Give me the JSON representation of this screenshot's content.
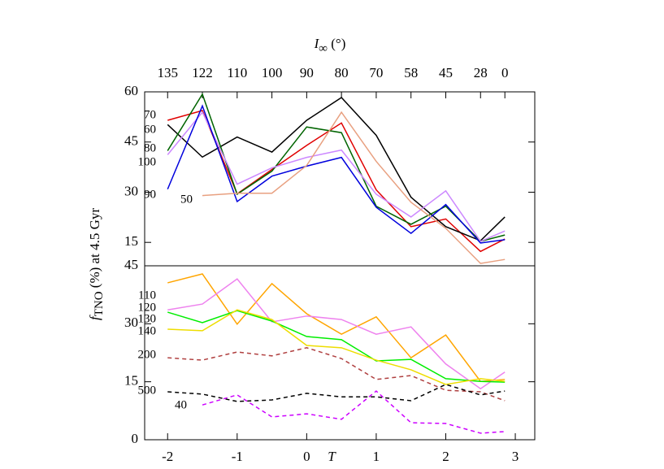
{
  "chart_data": [
    {
      "type": "line",
      "ylabel": [
        "f",
        "TNO",
        " (%) at 4.5 Gyr"
      ],
      "top_xlabel": [
        "I",
        "∞",
        " (°)"
      ],
      "x": [
        -2,
        -1.5,
        -1,
        -0.5,
        0,
        0.5,
        1,
        1.5,
        2,
        2.5,
        2.85
      ],
      "xlim": [
        -2.33,
        3.28
      ],
      "top_xticks": [
        {
          "value": -2,
          "label": "135"
        },
        {
          "value": -1.5,
          "label": "122"
        },
        {
          "value": -1,
          "label": "110"
        },
        {
          "value": -0.5,
          "label": "100"
        },
        {
          "value": 0,
          "label": "90"
        },
        {
          "value": 0.5,
          "label": "80"
        },
        {
          "value": 1,
          "label": "70"
        },
        {
          "value": 1.5,
          "label": "58"
        },
        {
          "value": 2,
          "label": "45"
        },
        {
          "value": 2.5,
          "label": "28"
        },
        {
          "value": 2.85,
          "label": "0"
        }
      ],
      "ylim": [
        8,
        60
      ],
      "yticks": [
        15,
        30,
        45,
        60
      ],
      "series": [
        {
          "name": "70",
          "color": "#e00000",
          "dash": false,
          "values": [
            51.5,
            54.4,
            29.5,
            36.8,
            44,
            50.7,
            30.7,
            19.7,
            22,
            12.3,
            16
          ]
        },
        {
          "name": "60",
          "color": "#000000",
          "dash": false,
          "values": [
            50.2,
            40.5,
            46.5,
            42,
            51.5,
            58.3,
            47,
            28.5,
            19.7,
            15.5,
            22.6
          ]
        },
        {
          "name": "80",
          "color": "#006400",
          "dash": false,
          "values": [
            42.4,
            59.3,
            29.4,
            36.3,
            49.5,
            47.8,
            25.8,
            20.4,
            25.8,
            15.3,
            17.2
          ]
        },
        {
          "name": "100",
          "color": "#cc88ff",
          "dash": false,
          "values": [
            41.2,
            53.9,
            32.4,
            37.3,
            40.4,
            42.6,
            29.4,
            22.6,
            30.4,
            15.3,
            18.4
          ]
        },
        {
          "name": "90",
          "color": "#0000dd",
          "dash": false,
          "values": [
            30.9,
            55.8,
            27.2,
            34.8,
            37.8,
            40.4,
            25.5,
            17.7,
            26.3,
            14.8,
            15.8
          ]
        },
        {
          "name": "50",
          "color": "#e8a080",
          "dash": false,
          "values": [
            null,
            29,
            29.7,
            29.7,
            38,
            53.9,
            39.2,
            27,
            19.2,
            8.7,
            9.9
          ]
        }
      ]
    },
    {
      "type": "line",
      "xlabel": "T",
      "x": [
        -2,
        -1.5,
        -1,
        -0.5,
        0,
        0.5,
        1,
        1.5,
        2,
        2.5,
        2.85
      ],
      "xlim": [
        -2.33,
        3.28
      ],
      "xticks": [
        -2,
        -1,
        0,
        1,
        2,
        3
      ],
      "ylim": [
        0,
        45
      ],
      "yticks": [
        0,
        15,
        30,
        45
      ],
      "series": [
        {
          "name": "110",
          "color": "#ffa500",
          "dash": false,
          "values": [
            40.6,
            42.9,
            29.9,
            40.4,
            32.6,
            27.3,
            31.8,
            21.2,
            27.1,
            15.1,
            15.6
          ]
        },
        {
          "name": "120",
          "color": "#ee82ee",
          "dash": false,
          "values": [
            33.6,
            35.1,
            41.6,
            30.5,
            32,
            31.1,
            27.3,
            29.2,
            19.6,
            13.2,
            17.5
          ]
        },
        {
          "name": "130",
          "color": "#00ee00",
          "dash": false,
          "values": [
            33,
            30.3,
            33.4,
            30.7,
            26.7,
            25.9,
            20.4,
            20.8,
            15.8,
            15.1,
            14.9
          ]
        },
        {
          "name": "140",
          "color": "#eedd00",
          "dash": false,
          "values": [
            28.6,
            28.2,
            33.6,
            31.1,
            24.4,
            23.8,
            20.6,
            18.1,
            14.3,
            15.8,
            15.1
          ]
        },
        {
          "name": "200",
          "color": "#b04040",
          "dash": true,
          "values": [
            21.2,
            20.6,
            22.7,
            21.7,
            23.8,
            21,
            15.6,
            16.6,
            12.8,
            12.4,
            10.1
          ]
        },
        {
          "name": "500",
          "color": "#000000",
          "dash": true,
          "values": [
            12.4,
            11.8,
            9.9,
            10.3,
            12,
            11.1,
            11.1,
            10.1,
            14.3,
            11.6,
            12.6
          ]
        },
        {
          "name": "40",
          "color": "#cc00ff",
          "dash": true,
          "values": [
            null,
            9,
            11.6,
            5.9,
            6.7,
            5.3,
            12.6,
            4.4,
            4.2,
            1.7,
            2.1
          ]
        }
      ]
    }
  ]
}
